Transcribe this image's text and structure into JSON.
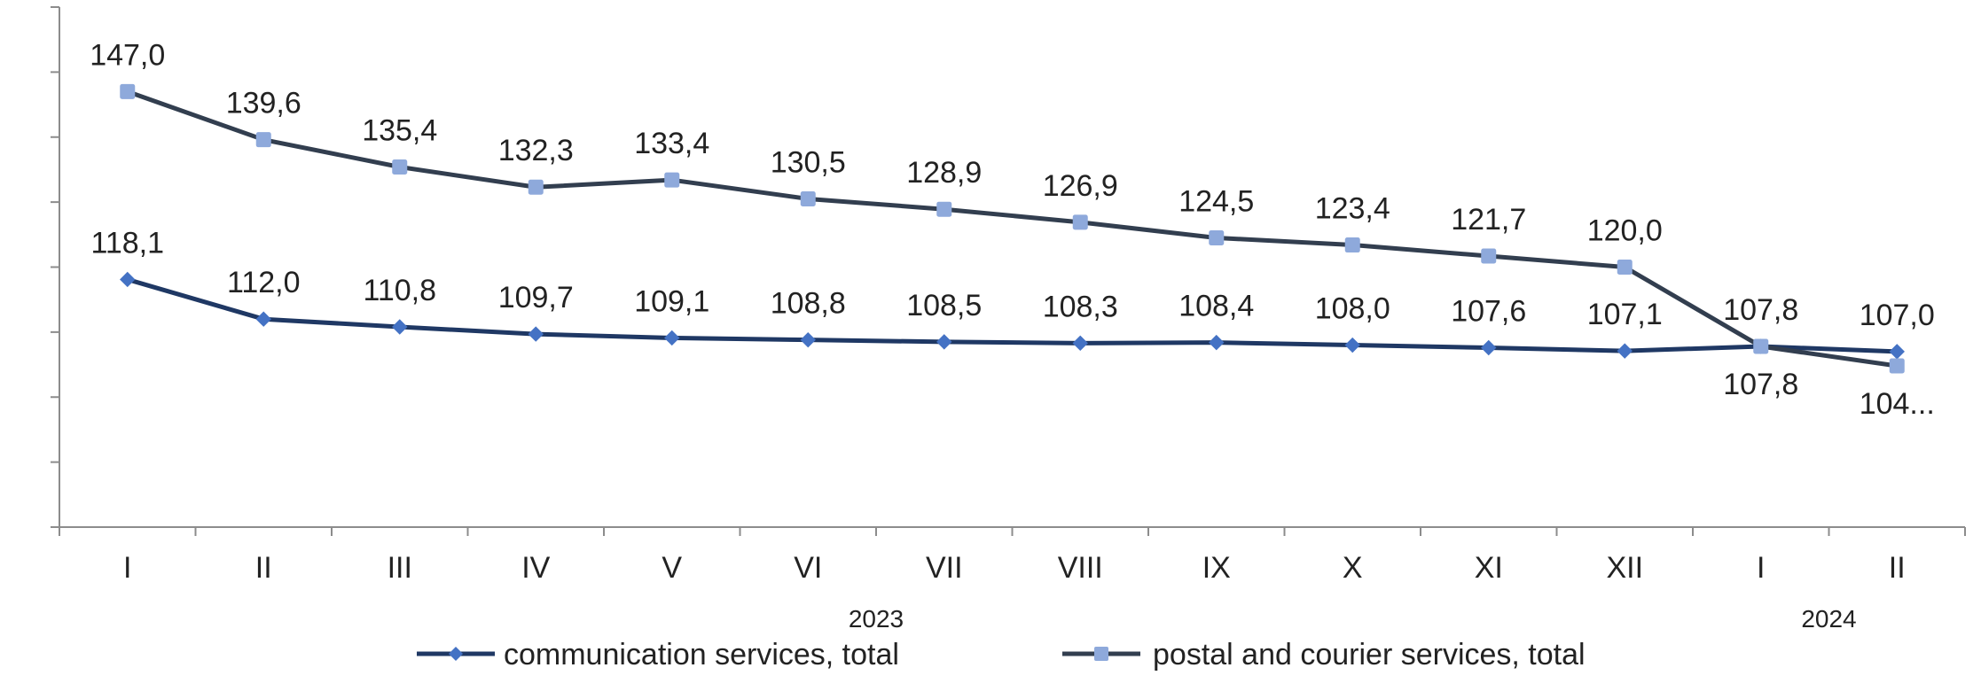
{
  "chart_data": {
    "type": "line",
    "categories": [
      "I",
      "II",
      "III",
      "IV",
      "V",
      "VI",
      "VII",
      "VIII",
      "IX",
      "X",
      "XI",
      "XII",
      "I",
      "II"
    ],
    "year_labels": [
      {
        "text": "2023",
        "start_index": 0,
        "end_index": 11
      },
      {
        "text": "2024",
        "start_index": 12,
        "end_index": 13
      }
    ],
    "series": [
      {
        "name": "communication services, total",
        "values": [
          118.1,
          112.0,
          110.8,
          109.7,
          109.1,
          108.8,
          108.5,
          108.3,
          108.4,
          108.0,
          107.6,
          107.1,
          107.8,
          107.0
        ],
        "labels": [
          "118,1",
          "112,0",
          "110,8",
          "109,7",
          "109,1",
          "108,8",
          "108,5",
          "108,3",
          "108,4",
          "108,0",
          "107,6",
          "107,1",
          "107,8",
          "107,0"
        ],
        "label_position": [
          "above",
          "above",
          "above",
          "above",
          "above",
          "above",
          "above",
          "above",
          "above",
          "above",
          "above",
          "above",
          "above",
          "above"
        ],
        "color": "#1f3864",
        "marker": "diamond",
        "marker_color": "#4472c4"
      },
      {
        "name": "postal and courier services, total",
        "values": [
          147.0,
          139.6,
          135.4,
          132.3,
          133.4,
          130.5,
          128.9,
          126.9,
          124.5,
          123.4,
          121.7,
          120.0,
          107.8,
          104.8
        ],
        "labels": [
          "147,0",
          "139,6",
          "135,4",
          "132,3",
          "133,4",
          "130,5",
          "128,9",
          "126,9",
          "124,5",
          "123,4",
          "121,7",
          "120,0",
          "107,8",
          "104..."
        ],
        "label_position": [
          "above",
          "above",
          "above",
          "above",
          "above",
          "above",
          "above",
          "above",
          "above",
          "above",
          "above",
          "above",
          "below",
          "below"
        ],
        "color": "#323e4f",
        "marker": "square",
        "marker_color": "#8ea9db"
      }
    ],
    "ylim": [
      80,
      160
    ],
    "y_tick_step": 10,
    "y_tick_labels_shown": false,
    "grid": false,
    "legend_position": "bottom",
    "title": "",
    "xlabel": "",
    "ylabel": ""
  }
}
